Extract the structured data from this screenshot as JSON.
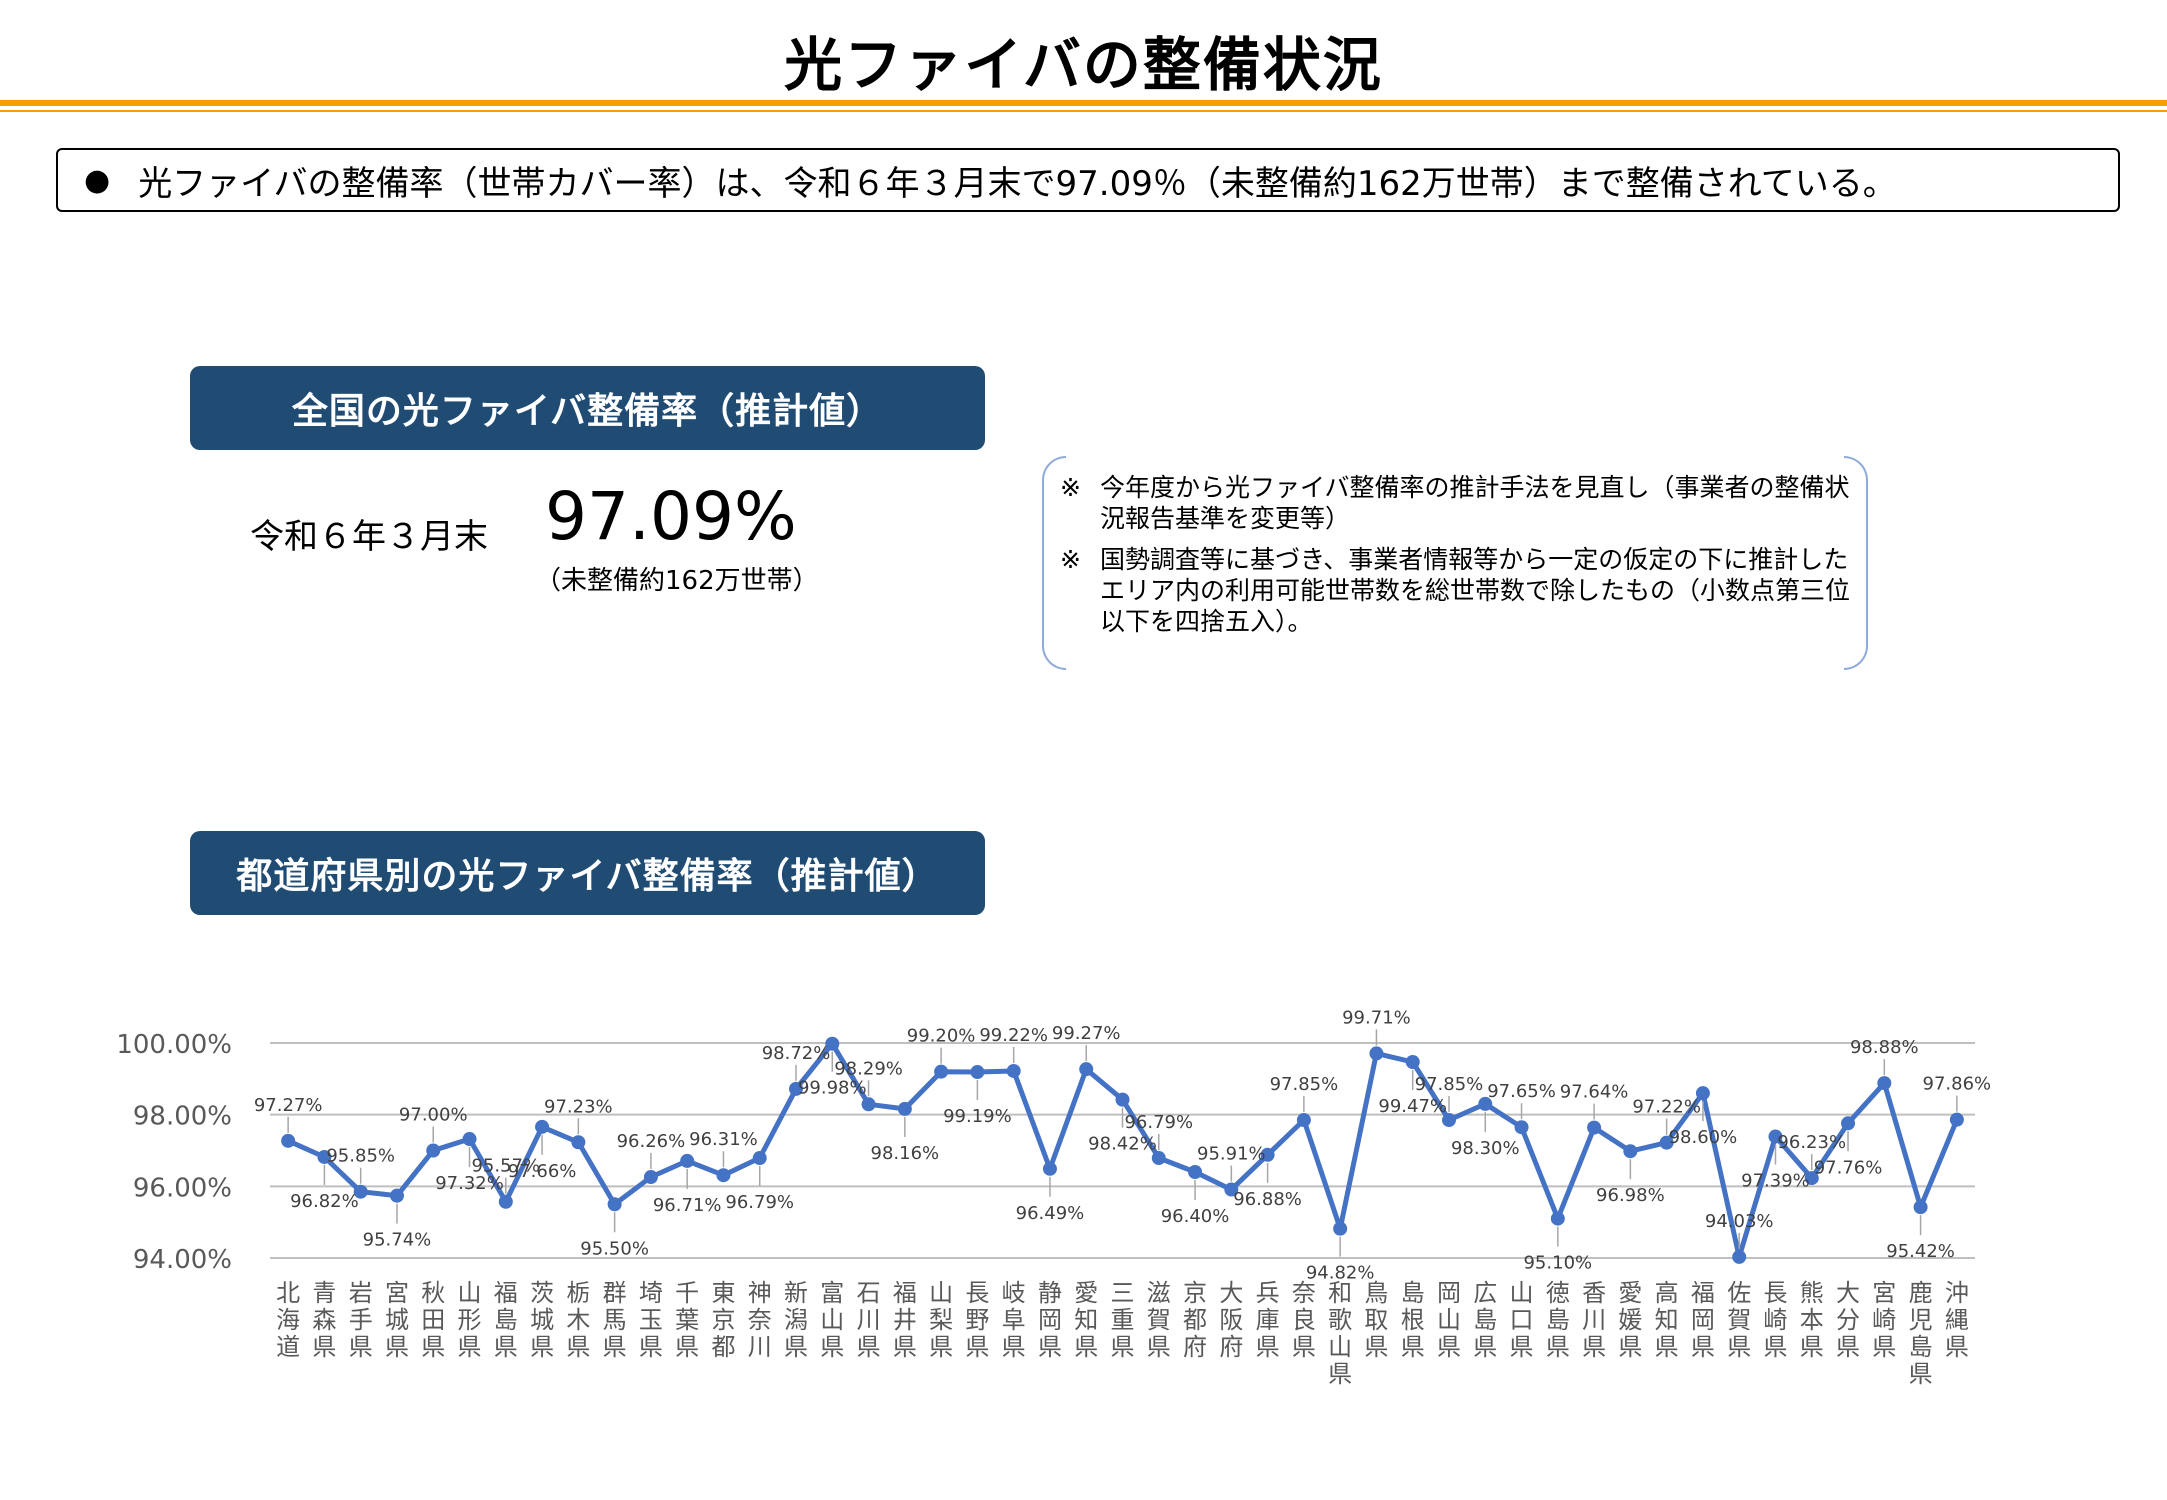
{
  "title": "光ファイバの整備状況",
  "summary": {
    "bullet": "●",
    "text": "光ファイバの整備率（世帯カバー率）は、令和６年３月末で97.09％（未整備約162万世帯）まで整備されている。"
  },
  "national": {
    "header": "全国の光ファイバ整備率（推計値）",
    "date_label": "令和６年３月末",
    "rate": "97.09%",
    "unserved": "（未整備約162万世帯）"
  },
  "notes": {
    "mark": "※",
    "items": [
      "今年度から光ファイバ整備率の推計手法を見直し（事業者の整備状況報告基準を変更等）",
      "国勢調査等に基づき、事業者情報等から一定の仮定の下に推計したエリア内の利用可能世帯数を総世帯数で除したもの（小数点第三位以下を四捨五入）。"
    ]
  },
  "prefecture_section": {
    "header": "都道府県別の光ファイバ整備率（推計値）"
  },
  "colors": {
    "line": "#4472C4",
    "header_bg": "#204C74",
    "accent": "#F4A100"
  },
  "chart_data": {
    "type": "line",
    "ylim": [
      94,
      100
    ],
    "yticks": [
      "94.00%",
      "96.00%",
      "98.00%",
      "100.00%"
    ],
    "categories": [
      "北海道",
      "青森県",
      "岩手県",
      "宮城県",
      "秋田県",
      "山形県",
      "福島県",
      "茨城県",
      "栃木県",
      "群馬県",
      "埼玉県",
      "千葉県",
      "東京都",
      "神奈川",
      "新潟県",
      "富山県",
      "石川県",
      "福井県",
      "山梨県",
      "長野県",
      "岐阜県",
      "静岡県",
      "愛知県",
      "三重県",
      "滋賀県",
      "京都府",
      "大阪府",
      "兵庫県",
      "奈良県",
      "和歌山県",
      "鳥取県",
      "島根県",
      "岡山県",
      "広島県",
      "山口県",
      "徳島県",
      "香川県",
      "愛媛県",
      "高知県",
      "福岡県",
      "佐賀県",
      "長崎県",
      "熊本県",
      "大分県",
      "宮崎県",
      "鹿児島県",
      "沖縄県"
    ],
    "values": [
      97.27,
      96.82,
      95.85,
      95.74,
      97.0,
      97.32,
      95.57,
      97.66,
      97.23,
      95.5,
      96.26,
      96.71,
      96.31,
      96.79,
      98.72,
      99.98,
      98.29,
      98.16,
      99.2,
      99.19,
      99.22,
      96.49,
      99.27,
      98.42,
      96.79,
      96.4,
      95.91,
      96.88,
      97.85,
      94.82,
      99.71,
      99.47,
      97.85,
      98.3,
      97.65,
      95.1,
      97.64,
      96.98,
      97.22,
      98.6,
      94.03,
      97.39,
      96.23,
      97.76,
      98.88,
      95.42,
      97.86
    ],
    "labels": [
      "97.27%",
      "96.82%",
      "95.85%",
      "95.74%",
      "97.00%",
      "97.32%",
      "95.57%",
      "97.66%",
      "97.23%",
      "95.50%",
      "96.26%",
      "96.71%",
      "96.31%",
      "96.79%",
      "98.72%",
      "99.98%",
      "98.29%",
      "98.16%",
      "99.20%",
      "99.19%",
      "99.22%",
      "96.49%",
      "99.27%",
      "98.42%",
      "96.79%",
      "96.40%",
      "95.91%",
      "96.88%",
      "97.85%",
      "94.82%",
      "99.71%",
      "99.47%",
      "97.85%",
      "98.30%",
      "97.65%",
      "95.10%",
      "97.64%",
      "96.98%",
      "97.22%",
      "98.60%",
      "94.03%",
      "97.39%",
      "96.23%",
      "97.76%",
      "98.88%",
      "95.42%",
      "97.86%"
    ]
  }
}
